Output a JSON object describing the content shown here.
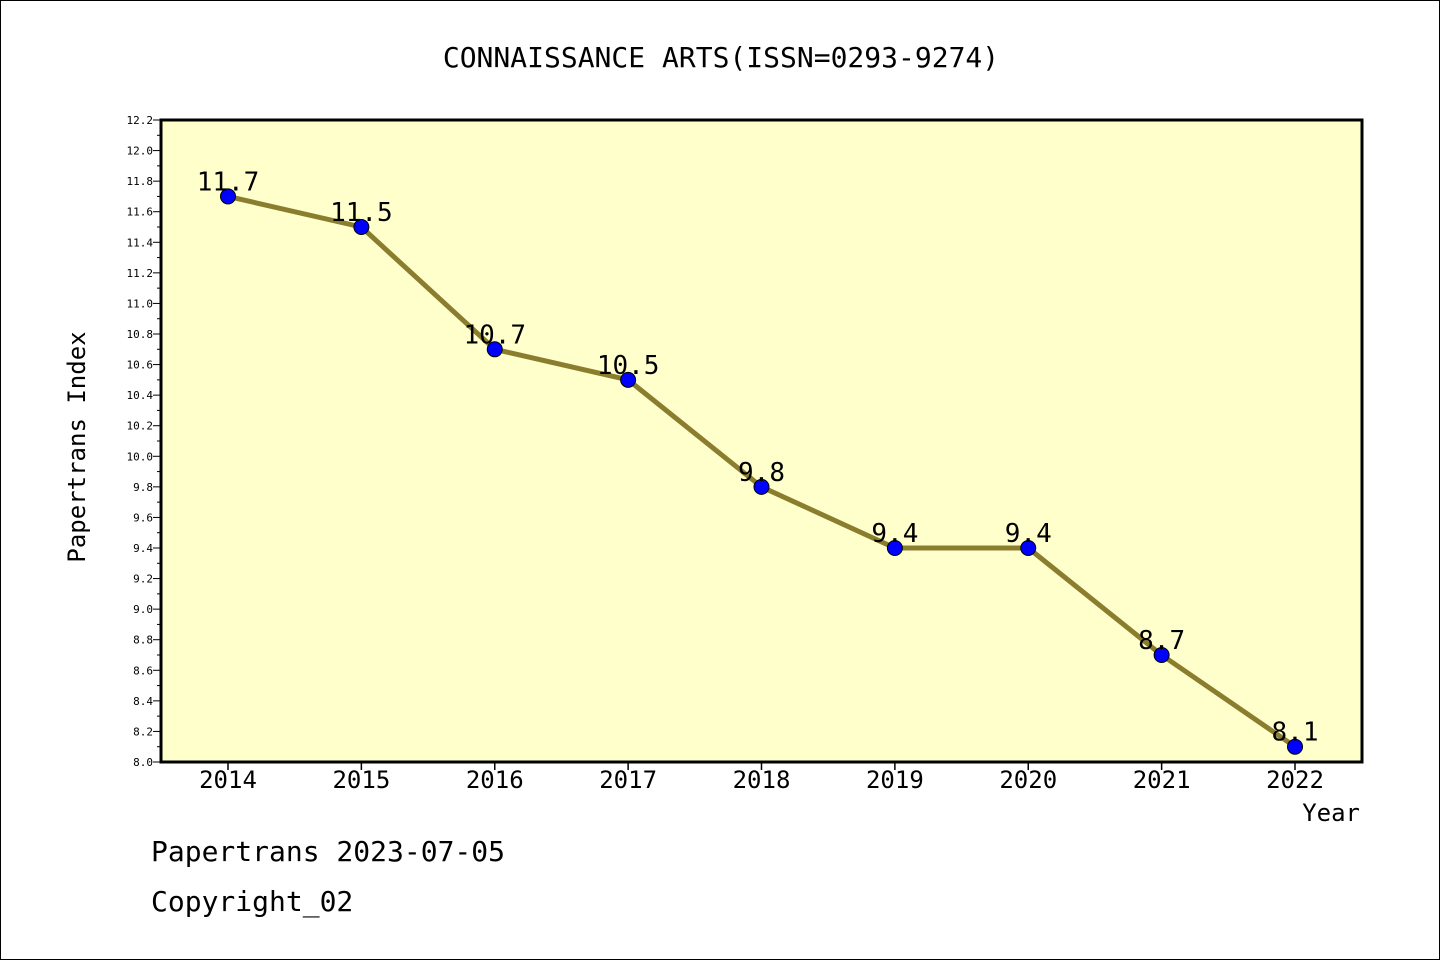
{
  "chart_data": {
    "type": "line",
    "title": "CONNAISSANCE ARTS(ISSN=0293-9274)",
    "xlabel": "Year",
    "ylabel": "Papertrans Index",
    "categories": [
      "2014",
      "2015",
      "2016",
      "2017",
      "2018",
      "2019",
      "2020",
      "2021",
      "2022"
    ],
    "values": [
      11.7,
      11.5,
      10.7,
      10.5,
      9.8,
      9.4,
      9.4,
      8.7,
      8.1
    ],
    "data_labels": [
      "11.7",
      "11.5",
      "10.7",
      "10.5",
      "9.8",
      "9.4",
      "9.4",
      "8.7",
      "8.1"
    ],
    "ylim": [
      8.0,
      12.2
    ],
    "yticks": [
      "8.0",
      "8.2",
      "8.4",
      "8.6",
      "8.8",
      "9.0",
      "9.2",
      "9.4",
      "9.6",
      "9.8",
      "10.0",
      "10.2",
      "10.4",
      "10.6",
      "10.8",
      "11.0",
      "11.2",
      "11.4",
      "11.6",
      "11.8",
      "12.0",
      "12.2"
    ],
    "grid": false,
    "legend": "none",
    "colors": {
      "plot_background": "#ffffcc",
      "line": "#8b7d2e",
      "marker": "#0000ff",
      "axis": "#000000"
    }
  },
  "footer": {
    "date_line": "Papertrans 2023-07-05",
    "copyright_line": "Copyright_02"
  }
}
